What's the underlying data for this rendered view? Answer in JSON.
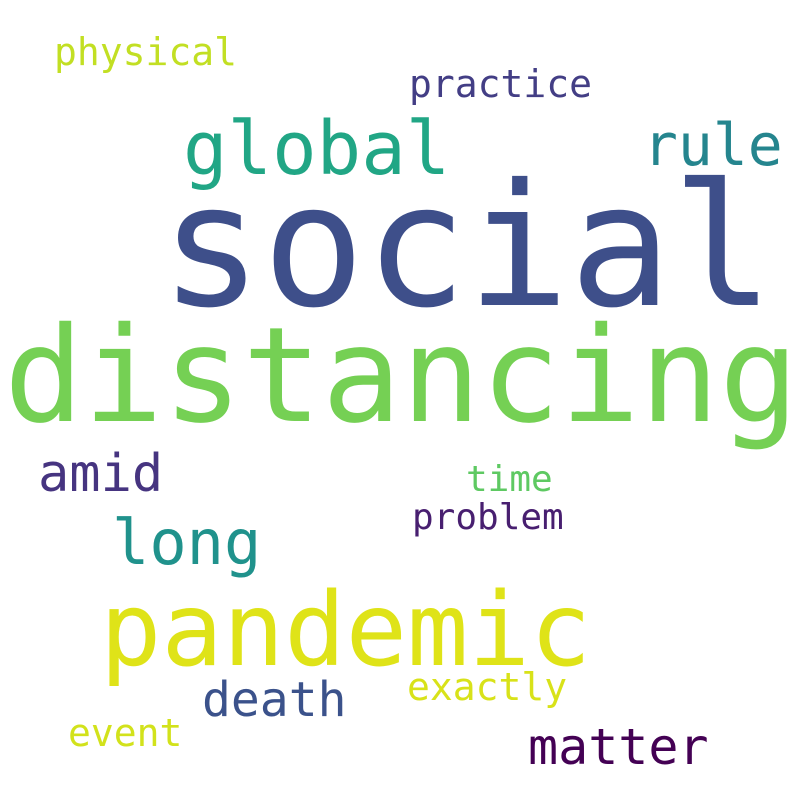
{
  "words": [
    {
      "text": "social",
      "color": "#3e4f8a"
    },
    {
      "text": "distancing",
      "color": "#75d054"
    },
    {
      "text": "pandemic",
      "color": "#dfe318"
    },
    {
      "text": "global",
      "color": "#21a685"
    },
    {
      "text": "rule",
      "color": "#25858e"
    },
    {
      "text": "practice",
      "color": "#433e85"
    },
    {
      "text": "physical",
      "color": "#c2df23"
    },
    {
      "text": "amid",
      "color": "#463480"
    },
    {
      "text": "long",
      "color": "#20928c"
    },
    {
      "text": "time",
      "color": "#5ec962"
    },
    {
      "text": "problem",
      "color": "#481f70"
    },
    {
      "text": "death",
      "color": "#3b528b"
    },
    {
      "text": "exactly",
      "color": "#d8e219"
    },
    {
      "text": "matter",
      "color": "#440154"
    },
    {
      "text": "event",
      "color": "#d2e21b"
    }
  ]
}
